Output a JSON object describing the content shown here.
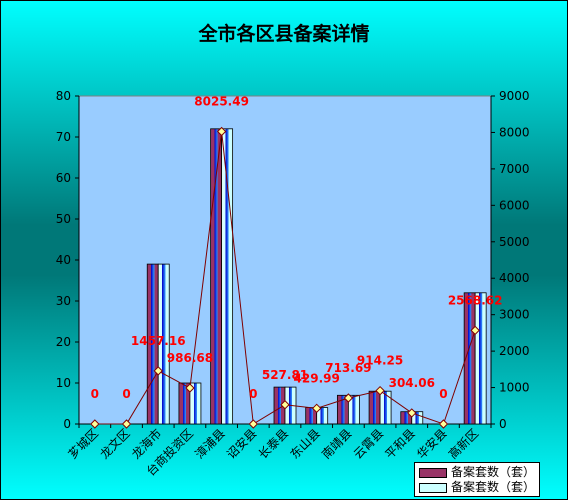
{
  "chart_data": {
    "type": "bar",
    "title": "全市各区县备案详情",
    "categories": [
      "芗城区",
      "龙文区",
      "龙海市",
      "台商投资区",
      "漳浦县",
      "诏安县",
      "长泰县",
      "东山县",
      "南靖县",
      "云霄县",
      "平和县",
      "华安县",
      "高新区"
    ],
    "series": [
      {
        "name": "备案套数（套）",
        "type": "bar",
        "axis": "left",
        "color": "#993366",
        "values": [
          0,
          0,
          39,
          10,
          72,
          0,
          9,
          4,
          7,
          8,
          3,
          0,
          32
        ]
      },
      {
        "name": "备案套数（套）",
        "type": "bar",
        "axis": "left",
        "color": "#CCFFFF",
        "values": [
          0,
          0,
          39,
          10,
          72,
          0,
          9,
          4,
          7,
          8,
          3,
          0,
          32
        ]
      },
      {
        "name": "",
        "type": "line",
        "axis": "right",
        "color": "#7F0000",
        "values": [
          0,
          0,
          1457.16,
          986.68,
          8025.49,
          0,
          527.81,
          429.99,
          713.69,
          914.25,
          304.06,
          0,
          2568.62
        ]
      }
    ],
    "data_labels": [
      "0",
      "0",
      "1457.16",
      "986.68",
      "8025.49",
      "0",
      "527.81",
      "429.99",
      "713.69",
      "914.25",
      "304.06",
      "0",
      "2568.62"
    ],
    "y_left": {
      "min": 0,
      "max": 80,
      "step": 10,
      "ticks": [
        "0",
        "10",
        "20",
        "30",
        "40",
        "50",
        "60",
        "70",
        "80"
      ]
    },
    "y_right": {
      "min": 0,
      "max": 9000,
      "step": 1000,
      "ticks": [
        "0",
        "1000",
        "2000",
        "3000",
        "4000",
        "5000",
        "6000",
        "7000",
        "8000",
        "9000"
      ]
    },
    "xlabel": "",
    "ylabel": "",
    "grid": false,
    "legend_position": "bottom-right",
    "plot_background": "#99CCFF",
    "background": "teal-gradient"
  }
}
